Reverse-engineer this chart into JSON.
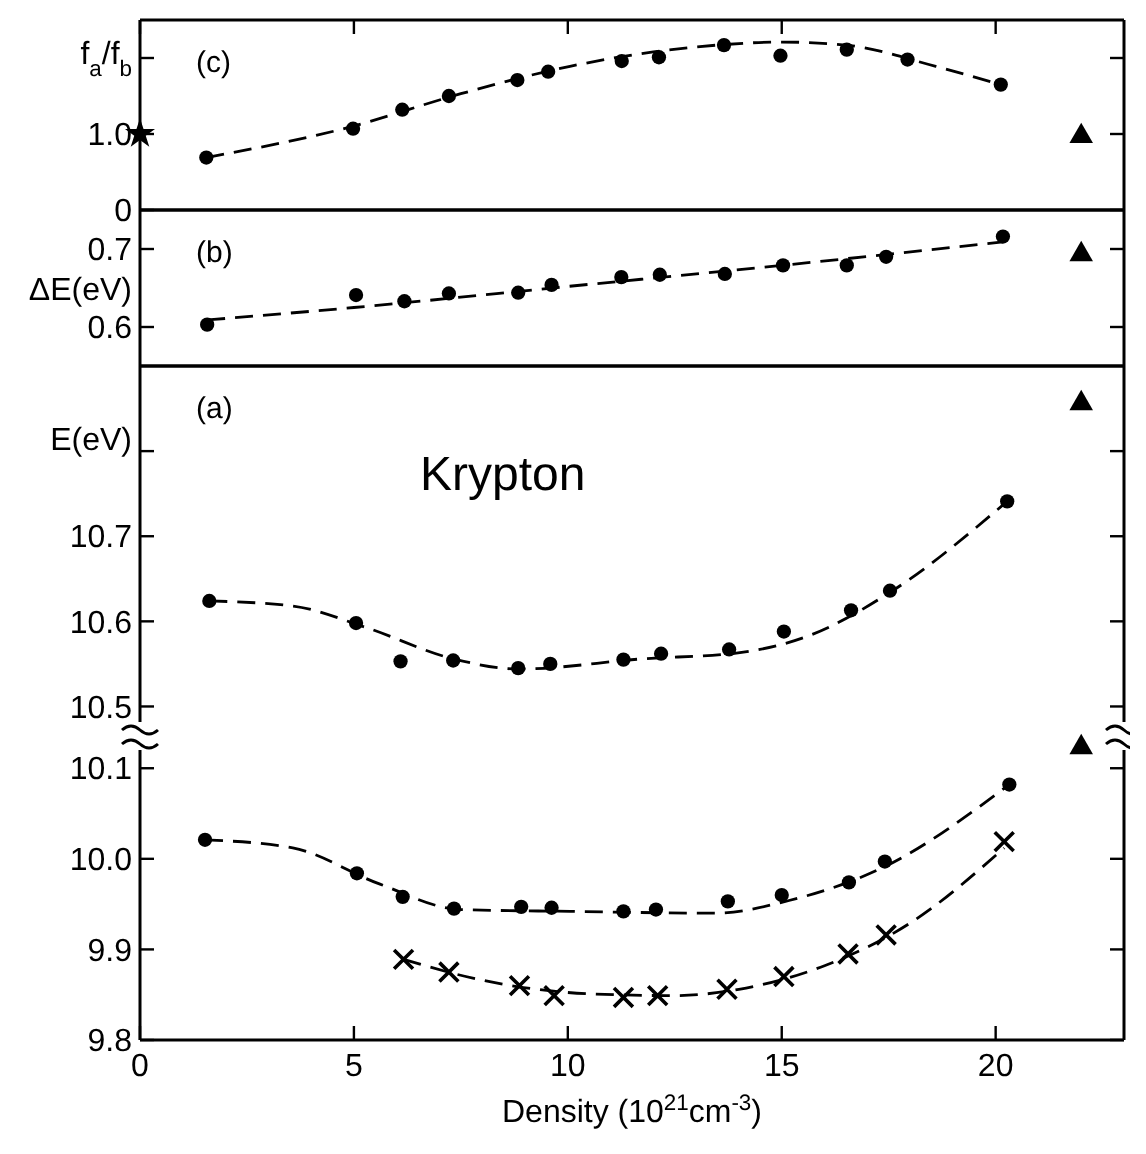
{
  "chart_data": [
    {
      "type": "scatter",
      "ylabel": "f$_{a}$/f$_{b}$",
      "annotations": [
        "(c)"
      ],
      "xlim": [
        0,
        23
      ],
      "xticks": [
        0,
        5,
        10,
        15,
        20
      ],
      "ylim": [
        0,
        2.5
      ],
      "yticks": [
        0,
        {
          "value": 1,
          "label": "1.0"
        },
        {
          "value": 2,
          "label": null
        }
      ],
      "tick_labels": "y",
      "series": [
        {
          "type": "scatter",
          "marker": "circle",
          "color": "#000000",
          "x": [
            1.55,
            4.98,
            6.13,
            7.22,
            8.82,
            9.54,
            11.26,
            12.13,
            13.65,
            14.97,
            16.52,
            17.94,
            20.12
          ],
          "values": [
            0.69,
            1.07,
            1.32,
            1.5,
            1.71,
            1.82,
            1.96,
            2.01,
            2.17,
            2.03,
            2.11,
            1.98,
            1.65
          ]
        },
        {
          "type": "line",
          "line_style": "dashed",
          "color": "#000000",
          "x": [
            1.55,
            4.9,
            7.5,
            10.05,
            12,
            13.5,
            15,
            16.5,
            18.6,
            20.12
          ],
          "values": [
            0.69,
            1.09,
            1.53,
            1.89,
            2.08,
            2.17,
            2.21,
            2.17,
            1.89,
            1.65
          ]
        },
        {
          "type": "scatter",
          "marker": "triangle",
          "color": "#000000",
          "x": [
            22
          ],
          "values": [
            0.97
          ]
        },
        {
          "type": "scatter",
          "marker": "star",
          "color": "#000000",
          "x": [
            0
          ],
          "values": [
            1.0
          ]
        }
      ]
    },
    {
      "type": "scatter",
      "ylabel": "ΔE(eV)",
      "annotations": [
        "(b)"
      ],
      "xlim": [
        0,
        23
      ],
      "xticks": [
        0,
        5,
        10,
        15,
        20
      ],
      "ylim": [
        0.55,
        0.75
      ],
      "yticks": [
        0.6,
        0.7
      ],
      "tick_labels": "y",
      "series": [
        {
          "type": "scatter",
          "marker": "circle",
          "color": "#000000",
          "x": [
            1.57,
            5.05,
            6.18,
            7.22,
            8.84,
            9.62,
            11.25,
            12.15,
            13.67,
            15.03,
            16.52,
            17.44,
            20.17
          ],
          "values": [
            0.603,
            0.641,
            0.633,
            0.643,
            0.644,
            0.654,
            0.664,
            0.667,
            0.668,
            0.679,
            0.679,
            0.69,
            0.716
          ]
        },
        {
          "type": "line",
          "line_style": "dashed",
          "color": "#000000",
          "x": [
            1.57,
            5,
            10,
            15,
            20.17
          ],
          "values": [
            0.609,
            0.625,
            0.652,
            0.679,
            0.709
          ]
        },
        {
          "type": "scatter",
          "marker": "triangle",
          "color": "#000000",
          "x": [
            22
          ],
          "values": [
            0.693
          ]
        }
      ]
    },
    {
      "type": "scatter",
      "ylabel": "E(eV)",
      "annotations": [
        "(a)",
        "Krypton"
      ],
      "xlim": [
        0,
        23
      ],
      "xticks": [
        0,
        5,
        10,
        15,
        20
      ],
      "ylim": [
        10.47,
        10.9
      ],
      "yticks": [
        10.5,
        10.6,
        10.7,
        {
          "value": 10.8,
          "label": null
        }
      ],
      "tick_labels": "y",
      "series": [
        {
          "type": "scatter",
          "marker": "circle",
          "color": "#000000",
          "x": [
            1.62,
            5.05,
            6.09,
            7.32,
            8.84,
            9.59,
            11.3,
            12.18,
            13.77,
            15.05,
            16.62,
            17.53,
            20.27
          ],
          "values": [
            10.624,
            10.598,
            10.553,
            10.554,
            10.545,
            10.55,
            10.555,
            10.562,
            10.567,
            10.588,
            10.613,
            10.636,
            10.741
          ]
        },
        {
          "type": "line",
          "line_style": "dashed",
          "color": "#000000",
          "x": [
            1.62,
            3.57,
            5.27,
            7.32,
            8.86,
            11.76,
            13.98,
            15.68,
            17.56,
            20.27
          ],
          "values": [
            10.624,
            10.618,
            10.593,
            10.556,
            10.544,
            10.556,
            10.563,
            10.584,
            10.635,
            10.741
          ]
        },
        {
          "type": "scatter",
          "marker": "triangle",
          "color": "#000000",
          "x": [
            22
          ],
          "values": [
            10.856
          ]
        }
      ]
    },
    {
      "type": "scatter",
      "xlabel": "Density (10$^{21}$cm$^{-3}$)",
      "xlim": [
        0,
        23
      ],
      "xticks": [
        0,
        5,
        10,
        15,
        20
      ],
      "ylim": [
        9.8,
        10.14
      ],
      "yticks": [
        9.8,
        9.9,
        {
          "value": 10,
          "label": "10.0"
        },
        10.1
      ],
      "series": [
        {
          "type": "scatter",
          "marker": "circle",
          "color": "#000000",
          "x": [
            1.52,
            5.07,
            6.14,
            7.34,
            8.91,
            9.62,
            11.3,
            12.06,
            13.74,
            15,
            16.57,
            17.41,
            20.32
          ],
          "values": [
            10.021,
            9.984,
            9.958,
            9.945,
            9.947,
            9.946,
            9.942,
            9.944,
            9.953,
            9.96,
            9.974,
            9.997,
            10.082
          ]
        },
        {
          "type": "line",
          "line_style": "dashed",
          "color": "#000000",
          "x": [
            1.52,
            3.57,
            5.61,
            7.49,
            10.05,
            13.46,
            15.17,
            17.39,
            20.32
          ],
          "values": [
            10.021,
            10.012,
            9.972,
            9.944,
            9.942,
            9.94,
            9.954,
            9.991,
            10.082
          ]
        },
        {
          "type": "scatter",
          "marker": "cross",
          "color": "#000000",
          "x": [
            6.16,
            7.22,
            8.87,
            9.68,
            11.3,
            12.1,
            13.72,
            15.05,
            16.55,
            17.44,
            20.2
          ],
          "values": [
            9.889,
            9.875,
            9.86,
            9.849,
            9.847,
            9.849,
            9.856,
            9.87,
            9.895,
            9.916,
            10.019
          ]
        },
        {
          "type": "line",
          "line_style": "dashed",
          "color": "#000000",
          "x": [
            6.16,
            8,
            10.5,
            12.5,
            14,
            16,
            18,
            20.2
          ],
          "values": [
            9.889,
            9.866,
            9.851,
            9.849,
            9.856,
            9.882,
            9.929,
            10.012
          ]
        },
        {
          "type": "scatter",
          "marker": "triangle",
          "color": "#000000",
          "x": [
            22
          ],
          "values": [
            10.123
          ]
        }
      ]
    }
  ]
}
